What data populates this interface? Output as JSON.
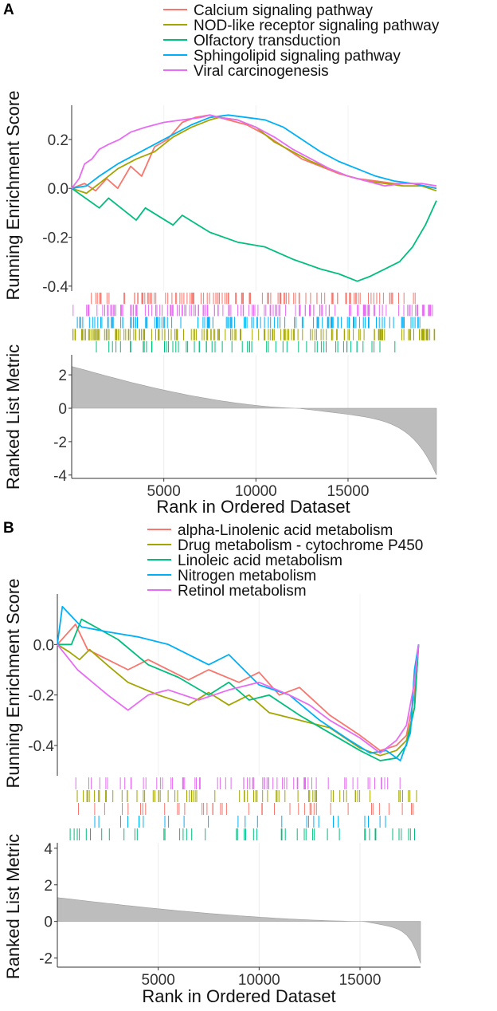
{
  "panels": [
    {
      "label": "A",
      "legend": [
        {
          "name": "Calcium signaling pathway",
          "color": "#F8766D"
        },
        {
          "name": "NOD-like receptor signaling pathway",
          "color": "#A3A500"
        },
        {
          "name": "Olfactory transduction",
          "color": "#00BF7D"
        },
        {
          "name": "Sphingolipid signaling pathway",
          "color": "#00B0F6"
        },
        {
          "name": "Viral carcinogenesis",
          "color": "#E76BF3"
        }
      ],
      "es_ylabel": "Running Enrichment Score",
      "metric_ylabel": "Ranked List Metric",
      "xlabel": "Rank in Ordered Dataset"
    },
    {
      "label": "B",
      "legend": [
        {
          "name": "alpha-Linolenic acid metabolism",
          "color": "#F8766D"
        },
        {
          "name": "Drug metabolism - cytochrome P450",
          "color": "#A3A500"
        },
        {
          "name": "Linoleic acid metabolism",
          "color": "#00BF7D"
        },
        {
          "name": "Nitrogen metabolism",
          "color": "#00B0F6"
        },
        {
          "name": "Retinol metabolism",
          "color": "#E76BF3"
        }
      ],
      "es_ylabel": "Running Enrichment Score",
      "metric_ylabel": "Ranked List Metric",
      "xlabel": "Rank in Ordered Dataset"
    }
  ],
  "chart_data": [
    {
      "type": "line",
      "title": "A",
      "xlabel": "Rank in Ordered Dataset",
      "ylabel": "Running Enrichment Score",
      "xlim": [
        0,
        19800
      ],
      "ylim": [
        -0.42,
        0.34
      ],
      "xticks": [
        5000,
        10000,
        15000
      ],
      "xtick_labels": [
        "5000",
        "10000",
        "15000"
      ],
      "yticks": [
        -0.4,
        -0.2,
        0.0,
        0.2
      ],
      "ytick_labels": [
        "-0.4",
        "-0.2",
        "0.0",
        "0.2"
      ],
      "series": [
        {
          "name": "Calcium signaling pathway",
          "color": "#F8766D",
          "x": [
            0,
            700,
            1300,
            1900,
            2500,
            3200,
            3800,
            4500,
            5200,
            6000,
            6700,
            7500,
            8000,
            8500,
            9500,
            10500,
            11500,
            12500,
            13500,
            14500,
            15500,
            16500,
            17500,
            18500,
            19800
          ],
          "y": [
            0.0,
            0.02,
            -0.01,
            0.04,
            0.0,
            0.09,
            0.05,
            0.17,
            0.2,
            0.27,
            0.29,
            0.3,
            0.29,
            0.28,
            0.26,
            0.22,
            0.17,
            0.12,
            0.09,
            0.06,
            0.04,
            0.03,
            0.02,
            0.02,
            0.0
          ]
        },
        {
          "name": "NOD-like receptor signaling pathway",
          "color": "#A3A500",
          "x": [
            0,
            800,
            1500,
            2500,
            3500,
            4500,
            5500,
            6500,
            7500,
            8000,
            9000,
            10000,
            11000,
            12000,
            13000,
            14000,
            15000,
            16000,
            17000,
            18000,
            19000,
            19800
          ],
          "y": [
            0.0,
            -0.02,
            0.02,
            0.08,
            0.12,
            0.15,
            0.21,
            0.25,
            0.28,
            0.29,
            0.28,
            0.25,
            0.19,
            0.15,
            0.11,
            0.08,
            0.05,
            0.03,
            0.02,
            0.01,
            0.01,
            -0.01
          ]
        },
        {
          "name": "Olfactory transduction",
          "color": "#00BF7D",
          "x": [
            0,
            1500,
            2000,
            3500,
            4000,
            5500,
            6000,
            7500,
            9000,
            10500,
            12000,
            13500,
            14500,
            15500,
            16200,
            17000,
            17800,
            18500,
            19200,
            19800
          ],
          "y": [
            0.0,
            -0.08,
            -0.04,
            -0.13,
            -0.08,
            -0.15,
            -0.11,
            -0.18,
            -0.22,
            -0.24,
            -0.29,
            -0.33,
            -0.35,
            -0.38,
            -0.36,
            -0.33,
            -0.3,
            -0.24,
            -0.15,
            -0.05
          ]
        },
        {
          "name": "Sphingolipid signaling pathway",
          "color": "#00B0F6",
          "x": [
            0,
            800,
            1500,
            2500,
            3500,
            4500,
            5500,
            6500,
            7500,
            8500,
            9500,
            10500,
            11500,
            12500,
            13500,
            14500,
            15500,
            16500,
            17500,
            18500,
            19800
          ],
          "y": [
            0.0,
            0.01,
            0.05,
            0.1,
            0.14,
            0.18,
            0.22,
            0.26,
            0.29,
            0.3,
            0.29,
            0.28,
            0.25,
            0.2,
            0.15,
            0.11,
            0.08,
            0.05,
            0.03,
            0.02,
            0.0
          ]
        },
        {
          "name": "Viral carcinogenesis",
          "color": "#E76BF3",
          "x": [
            0,
            400,
            700,
            1100,
            1500,
            2000,
            2600,
            3200,
            4000,
            5000,
            6000,
            7000,
            7500,
            8000,
            9000,
            10000,
            11000,
            12000,
            13000,
            14000,
            15000,
            16000,
            17000,
            18000,
            19000,
            19800
          ],
          "y": [
            0.0,
            0.04,
            0.1,
            0.12,
            0.16,
            0.18,
            0.2,
            0.23,
            0.25,
            0.27,
            0.28,
            0.29,
            0.3,
            0.29,
            0.28,
            0.25,
            0.21,
            0.16,
            0.12,
            0.08,
            0.05,
            0.03,
            0.01,
            0.02,
            0.02,
            0.01
          ]
        }
      ],
      "hits_note": "Gene hit ticks along ranked list per gene set (rows in legend order: Calcium, Viral, Sphingolipid, NOD-like, Olfactory)",
      "metric": {
        "ylabel": "Ranked List Metric",
        "ylim": [
          -4.2,
          3.2
        ],
        "yticks": [
          -4,
          -2,
          0,
          2
        ],
        "ytick_labels": [
          "-4",
          "-2",
          "0",
          "2"
        ],
        "zero_cross_rank": 12300,
        "start_value": 2.5,
        "end_value": -4.0
      }
    },
    {
      "type": "line",
      "title": "B",
      "xlabel": "Rank in Ordered Dataset",
      "ylabel": "Running Enrichment Score",
      "xlim": [
        0,
        18000
      ],
      "ylim": [
        -0.52,
        0.2
      ],
      "xticks": [
        5000,
        10000,
        15000
      ],
      "xtick_labels": [
        "5000",
        "10000",
        "15000"
      ],
      "yticks": [
        -0.4,
        -0.2,
        0.0
      ],
      "ytick_labels": [
        "-0.4",
        "-0.2",
        "0.0"
      ],
      "series": [
        {
          "name": "alpha-Linolenic acid metabolism",
          "color": "#F8766D",
          "x": [
            0,
            900,
            1500,
            3500,
            4500,
            6500,
            7500,
            9000,
            10000,
            11000,
            12000,
            13500,
            15000,
            16000,
            16800,
            17300,
            17700,
            17900
          ],
          "y": [
            0.0,
            0.08,
            -0.02,
            -0.1,
            -0.06,
            -0.14,
            -0.1,
            -0.15,
            -0.11,
            -0.2,
            -0.17,
            -0.28,
            -0.36,
            -0.42,
            -0.4,
            -0.36,
            -0.2,
            0.0
          ]
        },
        {
          "name": "Drug metabolism - cytochrome P450",
          "color": "#A3A500",
          "x": [
            0,
            600,
            1100,
            1600,
            2600,
            3500,
            5000,
            6500,
            7500,
            8500,
            9500,
            10500,
            12000,
            13500,
            15000,
            16000,
            16800,
            17300,
            17700,
            17900
          ],
          "y": [
            0.0,
            -0.03,
            -0.06,
            -0.02,
            -0.09,
            -0.15,
            -0.2,
            -0.24,
            -0.19,
            -0.24,
            -0.2,
            -0.27,
            -0.3,
            -0.33,
            -0.41,
            -0.44,
            -0.42,
            -0.38,
            -0.25,
            0.0
          ]
        },
        {
          "name": "Linoleic acid metabolism",
          "color": "#00BF7D",
          "x": [
            0,
            700,
            1200,
            3000,
            4500,
            6000,
            7500,
            8500,
            9500,
            10500,
            12000,
            13500,
            15000,
            16000,
            16800,
            17300,
            17700,
            17900
          ],
          "y": [
            0.0,
            0.0,
            0.1,
            0.02,
            -0.08,
            -0.13,
            -0.2,
            -0.15,
            -0.22,
            -0.2,
            -0.28,
            -0.35,
            -0.42,
            -0.46,
            -0.45,
            -0.4,
            -0.25,
            0.0
          ]
        },
        {
          "name": "Nitrogen metabolism",
          "color": "#00B0F6",
          "x": [
            0,
            250,
            1200,
            2500,
            4000,
            5500,
            7500,
            8500,
            10000,
            11500,
            13000,
            14500,
            15500,
            16300,
            17000,
            17500,
            17700,
            17900
          ],
          "y": [
            0.0,
            0.15,
            0.07,
            0.05,
            0.03,
            0.0,
            -0.08,
            -0.04,
            -0.16,
            -0.2,
            -0.3,
            -0.38,
            -0.43,
            -0.42,
            -0.46,
            -0.35,
            -0.1,
            0.0
          ]
        },
        {
          "name": "Retinol metabolism",
          "color": "#E76BF3",
          "x": [
            0,
            1000,
            2500,
            3500,
            4500,
            5500,
            7000,
            8500,
            10000,
            11500,
            12500,
            13500,
            15000,
            16000,
            16800,
            17300,
            17700,
            17900
          ],
          "y": [
            0.0,
            -0.1,
            -0.2,
            -0.26,
            -0.2,
            -0.18,
            -0.22,
            -0.18,
            -0.15,
            -0.2,
            -0.24,
            -0.3,
            -0.37,
            -0.43,
            -0.38,
            -0.32,
            -0.15,
            0.0
          ]
        }
      ],
      "hits_note": "Gene hit ticks along ranked list per gene set (rows: Retinol, Drug metabolism, alpha-Linolenic, Nitrogen, Linoleic)",
      "metric": {
        "ylabel": "Ranked List Metric",
        "ylim": [
          -2.5,
          4.3
        ],
        "yticks": [
          -2,
          0,
          2,
          4
        ],
        "ytick_labels": [
          "-2",
          "0",
          "2",
          "4"
        ],
        "zero_cross_rank": 15200,
        "start_value": 1.3,
        "end_value": -2.3
      }
    }
  ]
}
